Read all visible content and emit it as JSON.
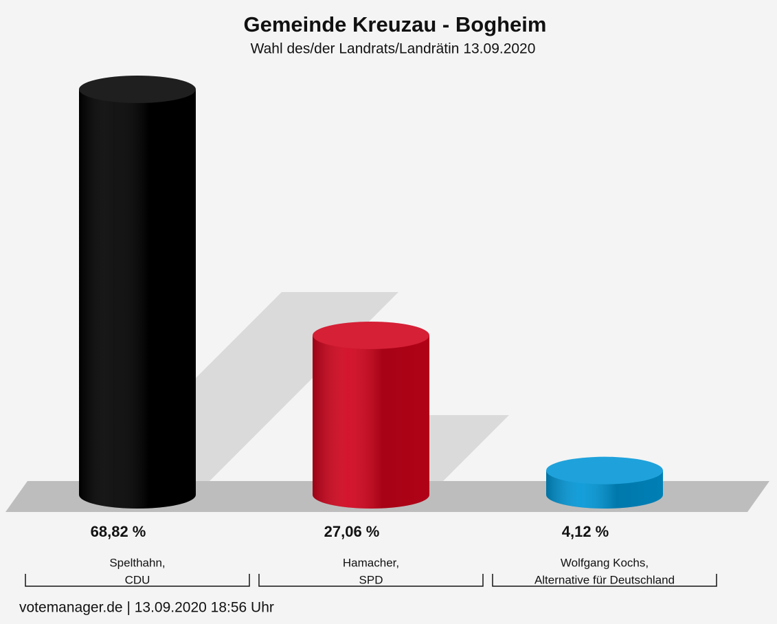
{
  "chart_data": {
    "type": "bar",
    "title": "Gemeinde Kreuzau - Bogheim",
    "subtitle": "Wahl des/der Landrats/Landrätin 13.09.2020",
    "categories": [
      [
        "Spelthahn,",
        "CDU"
      ],
      [
        "Hamacher,",
        "SPD"
      ],
      [
        "Wolfgang Kochs,",
        "Alternative für Deutschland"
      ]
    ],
    "values": [
      68.82,
      27.06,
      4.12
    ],
    "value_labels": [
      "68,82 %",
      "27,06 %",
      "4,12 %"
    ],
    "colors": [
      "#000000",
      "#d0021b",
      "#0096d6"
    ],
    "footer": "votemanager.de | 13.09.2020 18:56 Uhr"
  }
}
